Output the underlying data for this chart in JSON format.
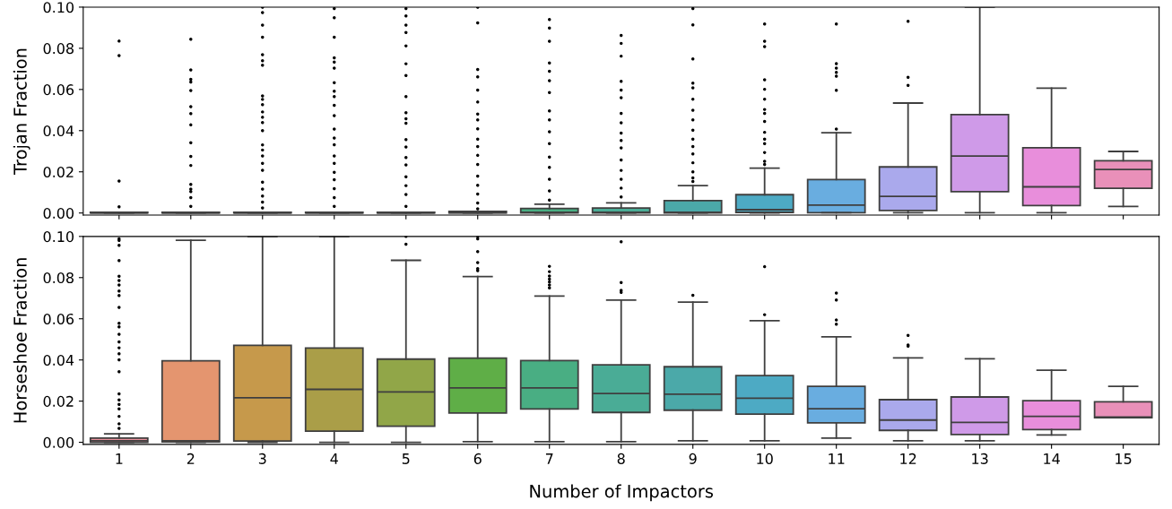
{
  "chart_data": [
    {
      "type": "box",
      "ylabel": "Trojan Fraction",
      "tick_labels": "y",
      "categories": [
        "1",
        "2",
        "3",
        "4",
        "5",
        "6",
        "7",
        "8",
        "9",
        "10",
        "11",
        "12",
        "13",
        "14",
        "15"
      ],
      "colors": [
        "#e8909b",
        "#e4956f",
        "#c6994b",
        "#aa9e48",
        "#91a648",
        "#5fae47",
        "#49ae83",
        "#4aac96",
        "#4ba9a9",
        "#4daac4",
        "#69ade0",
        "#aaa9ec",
        "#cf9ae8",
        "#e88edb",
        "#e990b9"
      ],
      "ylim": [
        -0.001,
        0.1
      ],
      "yticks": [
        {
          "value": 0,
          "label": "0.00"
        },
        {
          "value": 0.02,
          "label": "0.02"
        },
        {
          "value": 0.04,
          "label": "0.04"
        },
        {
          "value": 0.06,
          "label": "0.06"
        },
        {
          "value": 0.08,
          "label": "0.08"
        },
        {
          "value": 0.1,
          "label": "0.10"
        }
      ],
      "boxes": [
        {
          "low": 0,
          "q1": 0,
          "median": 0,
          "q3": 0.0003,
          "high": 0.0003,
          "outliers": [
            0.0835,
            0.0765,
            0.0155,
            0.003
          ]
        },
        {
          "low": 0,
          "q1": 0,
          "median": 0,
          "q3": 0.0003,
          "high": 0.0003,
          "outliers": [
            0.0844,
            0.0695,
            0.0649,
            0.0636,
            0.0595,
            0.0517,
            0.0483,
            0.0428,
            0.0341,
            0.0275,
            0.0231,
            0.0139,
            0.0116,
            0.0104,
            0.0075,
            0.0032
          ]
        },
        {
          "low": 0,
          "q1": 0,
          "median": 0,
          "q3": 0.0003,
          "high": 0.0003,
          "outliers": [
            0.1,
            0.0974,
            0.0913,
            0.0854,
            0.0769,
            0.074,
            0.0718,
            0.0569,
            0.0552,
            0.0526,
            0.0491,
            0.0465,
            0.0439,
            0.04,
            0.0331,
            0.0306,
            0.0277,
            0.0241,
            0.0208,
            0.015,
            0.0116,
            0.0082,
            0.0053,
            0.0025
          ]
        },
        {
          "low": 0,
          "q1": 0,
          "median": 0,
          "q3": 0.0003,
          "high": 0.0003,
          "outliers": [
            0.0993,
            0.0949,
            0.0854,
            0.0754,
            0.0733,
            0.0704,
            0.0633,
            0.0592,
            0.0566,
            0.0523,
            0.0473,
            0.0408,
            0.0364,
            0.0332,
            0.0277,
            0.0241,
            0.0198,
            0.0162,
            0.0118,
            0.0075,
            0.0032
          ]
        },
        {
          "low": 0,
          "q1": 0,
          "median": 0,
          "q3": 0.0003,
          "high": 0.0003,
          "outliers": [
            0.0993,
            0.0957,
            0.0913,
            0.0877,
            0.0812,
            0.0725,
            0.0668,
            0.0566,
            0.0487,
            0.0458,
            0.0436,
            0.0357,
            0.0321,
            0.027,
            0.0234,
            0.0176,
            0.0133,
            0.009,
            0.0032
          ]
        },
        {
          "low": 0,
          "q1": 0,
          "median": 0.0002,
          "q3": 0.0008,
          "high": 0.0008,
          "outliers": [
            0.1,
            0.0924,
            0.0697,
            0.0661,
            0.0597,
            0.0539,
            0.0481,
            0.0452,
            0.0409,
            0.0359,
            0.0323,
            0.028,
            0.0236,
            0.0179,
            0.0135,
            0.0092,
            0.0049,
            0.002
          ]
        },
        {
          "low": 0,
          "q1": 0,
          "median": 0.0003,
          "q3": 0.0022,
          "high": 0.0043,
          "outliers": [
            0.094,
            0.0899,
            0.0834,
            0.0729,
            0.0689,
            0.0643,
            0.0585,
            0.0496,
            0.0452,
            0.0395,
            0.0337,
            0.0272,
            0.0222,
            0.0164,
            0.0107,
            0.0063
          ]
        },
        {
          "low": 0,
          "q1": 0,
          "median": 0.0003,
          "q3": 0.0024,
          "high": 0.0049,
          "outliers": [
            0.0863,
            0.0824,
            0.0762,
            0.064,
            0.0597,
            0.056,
            0.0484,
            0.0438,
            0.0388,
            0.0352,
            0.0316,
            0.0258,
            0.0207,
            0.0164,
            0.0121,
            0.0078
          ]
        },
        {
          "low": 0,
          "q1": 0,
          "median": 0.0003,
          "q3": 0.006,
          "high": 0.0133,
          "outliers": [
            0.0993,
            0.0914,
            0.0748,
            0.0631,
            0.0608,
            0.0553,
            0.0499,
            0.0452,
            0.0402,
            0.0359,
            0.0323,
            0.0287,
            0.0244,
            0.02,
            0.0171,
            0.0153
          ]
        },
        {
          "low": 0,
          "q1": 0.0003,
          "median": 0.0016,
          "q3": 0.0089,
          "high": 0.0218,
          "outliers": [
            0.0918,
            0.0834,
            0.0808,
            0.0647,
            0.0601,
            0.0553,
            0.0503,
            0.0484,
            0.0445,
            0.0392,
            0.0359,
            0.0337,
            0.0294,
            0.0251,
            0.0236
          ]
        },
        {
          "low": 0.0001,
          "q1": 0.0001,
          "median": 0.0038,
          "q3": 0.0162,
          "high": 0.039,
          "outliers": [
            0.0918,
            0.0726,
            0.0704,
            0.0683,
            0.0665,
            0.0596,
            0.0408
          ]
        },
        {
          "low": 0.0001,
          "q1": 0.0012,
          "median": 0.0081,
          "q3": 0.0224,
          "high": 0.0534,
          "outliers": [
            0.0931,
            0.0659,
            0.062
          ]
        },
        {
          "low": 0.0001,
          "q1": 0.0104,
          "median": 0.0277,
          "q3": 0.0478,
          "high": 0.1
        },
        {
          "low": 0.0001,
          "q1": 0.0036,
          "median": 0.0127,
          "q3": 0.0317,
          "high": 0.0606
        },
        {
          "low": 0.0032,
          "q1": 0.012,
          "median": 0.0211,
          "q3": 0.0254,
          "high": 0.0299
        }
      ]
    },
    {
      "type": "box",
      "ylabel": "Horseshoe Fraction",
      "xlabel": "Number of Impactors",
      "categories": [
        "1",
        "2",
        "3",
        "4",
        "5",
        "6",
        "7",
        "8",
        "9",
        "10",
        "11",
        "12",
        "13",
        "14",
        "15"
      ],
      "colors": [
        "#e8909b",
        "#e4956f",
        "#c6994b",
        "#aa9e48",
        "#91a648",
        "#5fae47",
        "#49ae83",
        "#4aac96",
        "#4ba9a9",
        "#4daac4",
        "#69ade0",
        "#aaa9ec",
        "#cf9ae8",
        "#e88edb",
        "#e990b9"
      ],
      "ylim": [
        -0.001,
        0.1
      ],
      "yticks": [
        {
          "value": 0,
          "label": "0.00"
        },
        {
          "value": 0.02,
          "label": "0.02"
        },
        {
          "value": 0.04,
          "label": "0.04"
        },
        {
          "value": 0.06,
          "label": "0.06"
        },
        {
          "value": 0.08,
          "label": "0.08"
        },
        {
          "value": 0.1,
          "label": "0.10"
        }
      ],
      "boxes": [
        {
          "low": 0,
          "q1": 0,
          "median": 0.0007,
          "q3": 0.002,
          "high": 0.0041,
          "outliers": [
            0.0988,
            0.0981,
            0.0957,
            0.0883,
            0.0807,
            0.0786,
            0.0764,
            0.0735,
            0.0713,
            0.0655,
            0.0578,
            0.0561,
            0.0525,
            0.0488,
            0.0459,
            0.043,
            0.0401,
            0.0343,
            0.0235,
            0.0206,
            0.0184,
            0.0162,
            0.0126,
            0.009,
            0.0068
          ]
        },
        {
          "low": 0,
          "q1": 0.0002,
          "median": 0.0007,
          "q3": 0.0396,
          "high": 0.0981
        },
        {
          "low": 0,
          "q1": 0.0006,
          "median": 0.0216,
          "q3": 0.0471,
          "high": 0.1
        },
        {
          "low": 0,
          "q1": 0.0054,
          "median": 0.0257,
          "q3": 0.0458,
          "high": 0.1
        },
        {
          "low": 0,
          "q1": 0.0078,
          "median": 0.0245,
          "q3": 0.0404,
          "high": 0.0884,
          "outliers": [
            0.1,
            0.0962
          ]
        },
        {
          "low": 0.0003,
          "q1": 0.0142,
          "median": 0.0264,
          "q3": 0.0409,
          "high": 0.0805,
          "outliers": [
            0.1,
            0.0988,
            0.0926,
            0.0873,
            0.0844,
            0.0834
          ]
        },
        {
          "low": 0.0003,
          "q1": 0.0162,
          "median": 0.0264,
          "q3": 0.0397,
          "high": 0.071,
          "outliers": [
            0.0855,
            0.0829,
            0.0808,
            0.0793,
            0.0779,
            0.0764,
            0.075
          ]
        },
        {
          "low": 0.0003,
          "q1": 0.0145,
          "median": 0.0237,
          "q3": 0.0376,
          "high": 0.0691,
          "outliers": [
            0.0974,
            0.0776,
            0.0738,
            0.0728
          ]
        },
        {
          "low": 0.0007,
          "q1": 0.0156,
          "median": 0.0234,
          "q3": 0.0367,
          "high": 0.0681,
          "outliers": [
            0.0714
          ]
        },
        {
          "low": 0.0007,
          "q1": 0.0137,
          "median": 0.0214,
          "q3": 0.0324,
          "high": 0.0591,
          "outliers": [
            0.0853,
            0.062
          ]
        },
        {
          "low": 0.002,
          "q1": 0.0094,
          "median": 0.0163,
          "q3": 0.0272,
          "high": 0.0512,
          "outliers": [
            0.0725,
            0.0691,
            0.0594,
            0.0574
          ]
        },
        {
          "low": 0.0007,
          "q1": 0.0058,
          "median": 0.0108,
          "q3": 0.0207,
          "high": 0.041,
          "outliers": [
            0.0519,
            0.0473,
            0.0467
          ]
        },
        {
          "low": 0.0007,
          "q1": 0.0038,
          "median": 0.0097,
          "q3": 0.022,
          "high": 0.0406
        },
        {
          "low": 0.0036,
          "q1": 0.0062,
          "median": 0.0126,
          "q3": 0.0202,
          "high": 0.035
        },
        {
          "low": 0.012,
          "q1": 0.012,
          "median": 0.0123,
          "q3": 0.0197,
          "high": 0.0272
        }
      ]
    }
  ]
}
